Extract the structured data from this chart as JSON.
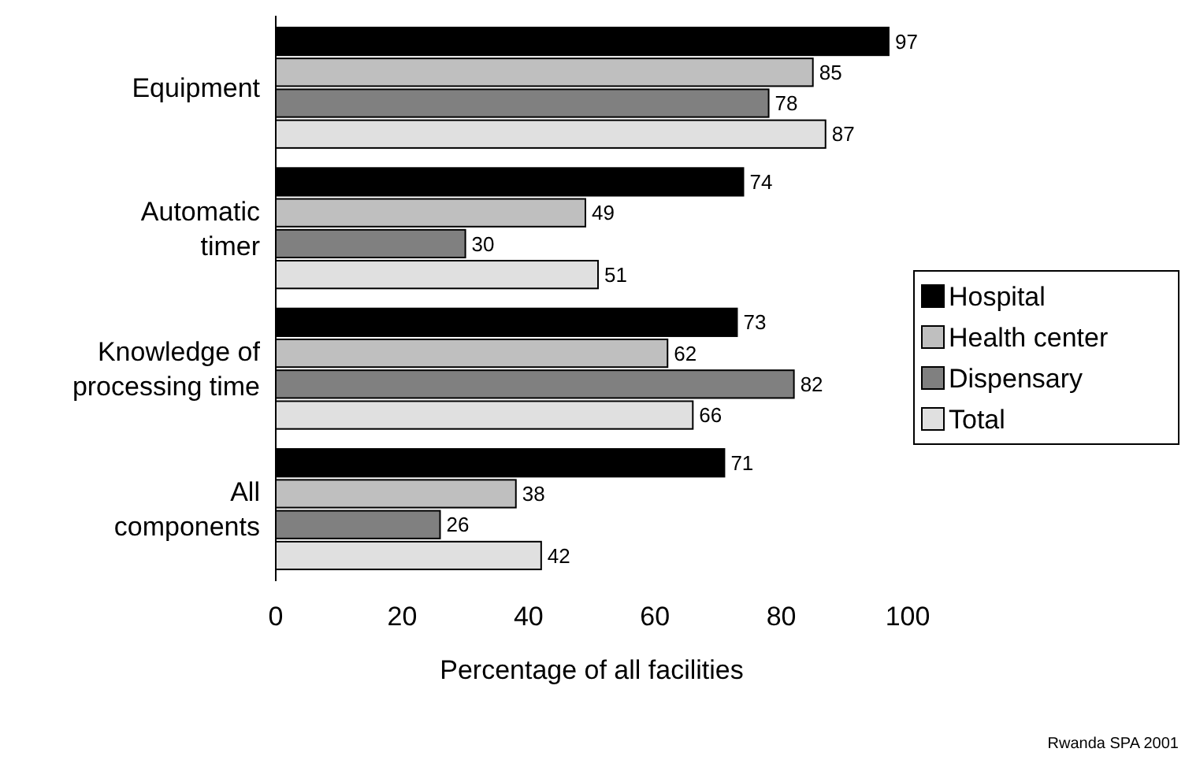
{
  "chart_data": {
    "type": "bar",
    "orientation": "horizontal",
    "categories": [
      "Equipment",
      "Automatic\ntimer",
      "Knowledge of\nprocessing time",
      "All\ncomponents"
    ],
    "series": [
      {
        "name": "Hospital",
        "color": "#000000",
        "values": [
          97,
          74,
          73,
          71
        ]
      },
      {
        "name": "Health center",
        "color": "#bfbfbf",
        "values": [
          85,
          49,
          62,
          38
        ]
      },
      {
        "name": "Dispensary",
        "color": "#808080",
        "values": [
          78,
          30,
          82,
          26
        ]
      },
      {
        "name": "Total",
        "color": "#e0e0e0",
        "values": [
          87,
          51,
          66,
          42
        ]
      }
    ],
    "xlim": [
      0,
      100
    ],
    "xticks": [
      0,
      20,
      40,
      60,
      80,
      100
    ],
    "xlabel": "Percentage of all facilities",
    "data_labels": true,
    "legend": "right",
    "grid": false,
    "annotations": [
      "Rwanda SPA 2001"
    ]
  }
}
